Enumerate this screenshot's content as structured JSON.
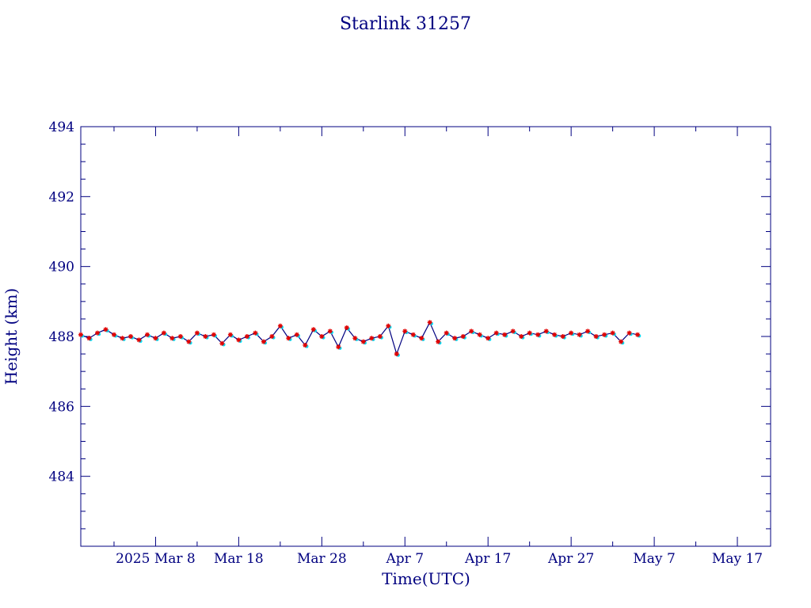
{
  "chart_data": {
    "type": "line",
    "title": "Starlink 31257",
    "xlabel": "Time(UTC)",
    "ylabel": "Height (km)",
    "x_ticks": [
      "2025 Mar  8",
      "Mar 18",
      "Mar 28",
      "Apr  7",
      "Apr 17",
      "Apr 27",
      "May  7",
      "May 17"
    ],
    "y_ticks": [
      "484",
      "486",
      "488",
      "490",
      "492",
      "494"
    ],
    "xlim": [
      "2025-02-27",
      "2025-05-21"
    ],
    "ylim": [
      482,
      494
    ],
    "grid": false,
    "colors": {
      "axes": "#000080",
      "line": "#000080",
      "cyan_markers": "#00e5ff",
      "red_markers": "#e00000"
    },
    "series": [
      {
        "x": [
          "2025-02-27",
          "2025-02-28",
          "2025-03-01",
          "2025-03-02",
          "2025-03-03",
          "2025-03-04",
          "2025-03-05",
          "2025-03-06",
          "2025-03-07",
          "2025-03-08",
          "2025-03-09",
          "2025-03-10",
          "2025-03-11",
          "2025-03-12",
          "2025-03-13",
          "2025-03-14",
          "2025-03-15",
          "2025-03-16",
          "2025-03-17",
          "2025-03-18",
          "2025-03-19",
          "2025-03-20",
          "2025-03-21",
          "2025-03-22",
          "2025-03-23",
          "2025-03-24",
          "2025-03-25",
          "2025-03-26",
          "2025-03-27",
          "2025-03-28",
          "2025-03-29",
          "2025-03-30",
          "2025-03-31",
          "2025-04-01",
          "2025-04-02",
          "2025-04-03",
          "2025-04-04",
          "2025-04-05",
          "2025-04-06",
          "2025-04-07",
          "2025-04-08",
          "2025-04-09",
          "2025-04-10",
          "2025-04-11",
          "2025-04-12",
          "2025-04-13",
          "2025-04-14",
          "2025-04-15",
          "2025-04-16",
          "2025-04-17",
          "2025-04-18",
          "2025-04-19",
          "2025-04-20",
          "2025-04-21",
          "2025-04-22",
          "2025-04-23",
          "2025-04-24",
          "2025-04-25",
          "2025-04-26",
          "2025-04-27",
          "2025-04-28",
          "2025-04-29",
          "2025-04-30",
          "2025-05-01",
          "2025-05-02",
          "2025-05-03",
          "2025-05-04",
          "2025-05-05"
        ],
        "values": [
          488.05,
          487.95,
          488.1,
          488.2,
          488.05,
          487.95,
          488.0,
          487.9,
          488.05,
          487.95,
          488.1,
          487.95,
          488.0,
          487.85,
          488.1,
          488.0,
          488.05,
          487.8,
          488.05,
          487.9,
          488.0,
          488.1,
          487.85,
          488.0,
          488.3,
          487.95,
          488.05,
          487.75,
          488.2,
          488.0,
          488.15,
          487.7,
          488.25,
          487.95,
          487.85,
          487.95,
          488.0,
          488.3,
          487.5,
          488.15,
          488.05,
          487.95,
          488.4,
          487.85,
          488.1,
          487.95,
          488.0,
          488.15,
          488.05,
          487.95,
          488.1,
          488.05,
          488.15,
          488.0,
          488.1,
          488.05,
          488.15,
          488.05,
          488.0,
          488.1,
          488.05,
          488.15,
          488.0,
          488.05,
          488.1,
          487.85,
          488.1,
          488.05
        ]
      }
    ]
  }
}
